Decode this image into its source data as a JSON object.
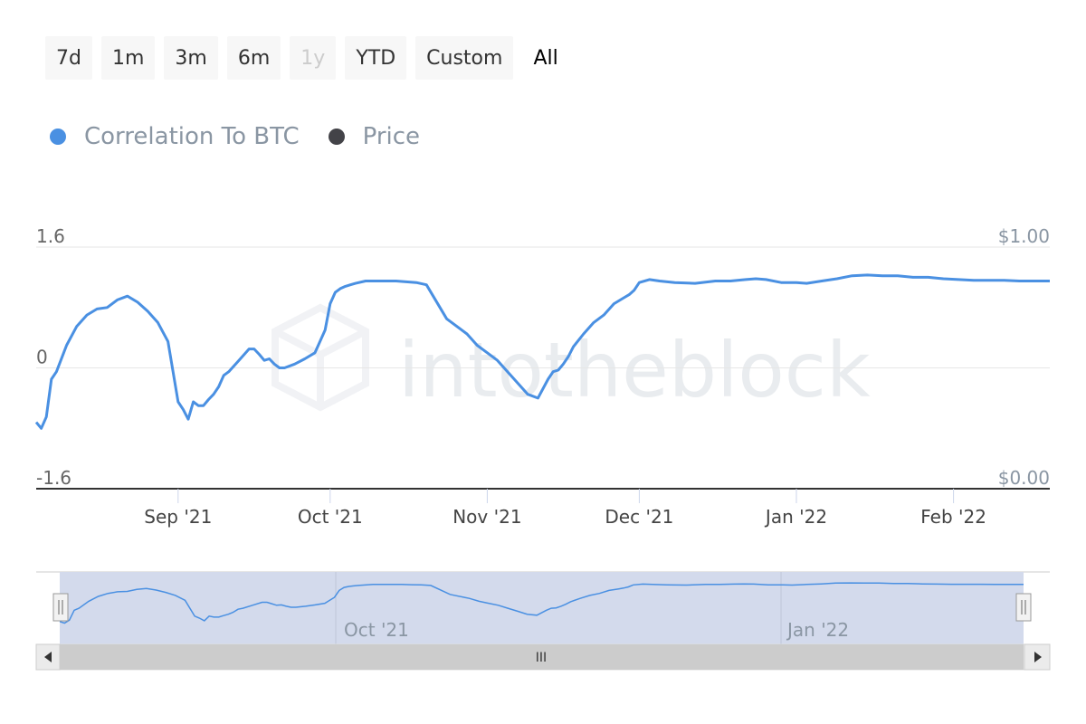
{
  "range_selector": {
    "buttons": [
      {
        "label": "7d",
        "state": "normal"
      },
      {
        "label": "1m",
        "state": "normal"
      },
      {
        "label": "3m",
        "state": "normal"
      },
      {
        "label": "6m",
        "state": "normal"
      },
      {
        "label": "1y",
        "state": "disabled"
      },
      {
        "label": "YTD",
        "state": "normal"
      },
      {
        "label": "Custom",
        "state": "normal"
      },
      {
        "label": "All",
        "state": "selected"
      }
    ]
  },
  "legend": {
    "items": [
      {
        "label": "Correlation To BTC",
        "color": "#4a90e2"
      },
      {
        "label": "Price",
        "color": "#434348"
      }
    ]
  },
  "watermark": "intotheblock",
  "navigator": {
    "labels": [
      "Oct '21",
      "Jan '22"
    ],
    "scrollbar_grip": "III"
  },
  "colors": {
    "line": "#4a90e2",
    "navigator_fill": "#d3daec",
    "grid": "#e6e6e6"
  },
  "chart_data": {
    "type": "line",
    "title": "",
    "xlabel": "",
    "ylabel": "",
    "ylim": [
      -1.6,
      1.6
    ],
    "y_ticks": [
      "1.6",
      "0",
      "-1.6"
    ],
    "y2_ticks": [
      "$1.00",
      "$0.00"
    ],
    "x_ticks": [
      "Sep '21",
      "Oct '21",
      "Nov '21",
      "Dec '21",
      "Jan '22",
      "Feb '22"
    ],
    "xlim": [
      "2021-08-04",
      "2022-02-20"
    ],
    "grid": true,
    "legend_position": "top-left",
    "series": [
      {
        "name": "Correlation To BTC",
        "x": [
          "2021-08-04",
          "2021-08-05",
          "2021-08-06",
          "2021-08-07",
          "2021-08-08",
          "2021-08-10",
          "2021-08-12",
          "2021-08-14",
          "2021-08-16",
          "2021-08-18",
          "2021-08-20",
          "2021-08-22",
          "2021-08-24",
          "2021-08-26",
          "2021-08-28",
          "2021-08-30",
          "2021-09-01",
          "2021-09-02",
          "2021-09-03",
          "2021-09-04",
          "2021-09-05",
          "2021-09-06",
          "2021-09-07",
          "2021-09-08",
          "2021-09-09",
          "2021-09-10",
          "2021-09-11",
          "2021-09-13",
          "2021-09-15",
          "2021-09-16",
          "2021-09-17",
          "2021-09-18",
          "2021-09-19",
          "2021-09-20",
          "2021-09-21",
          "2021-09-22",
          "2021-09-24",
          "2021-09-26",
          "2021-09-28",
          "2021-09-30",
          "2021-10-01",
          "2021-10-02",
          "2021-10-03",
          "2021-10-04",
          "2021-10-05",
          "2021-10-06",
          "2021-10-08",
          "2021-10-10",
          "2021-10-12",
          "2021-10-14",
          "2021-10-16",
          "2021-10-18",
          "2021-10-20",
          "2021-10-24",
          "2021-10-27",
          "2021-10-28",
          "2021-10-30",
          "2021-11-01",
          "2021-11-03",
          "2021-11-05",
          "2021-11-07",
          "2021-11-09",
          "2021-11-11",
          "2021-11-13",
          "2021-11-14",
          "2021-11-15",
          "2021-11-16",
          "2021-11-17",
          "2021-11-18",
          "2021-11-20",
          "2021-11-22",
          "2021-11-24",
          "2021-11-26",
          "2021-11-28",
          "2021-11-29",
          "2021-11-30",
          "2021-12-01",
          "2021-12-03",
          "2021-12-05",
          "2021-12-08",
          "2021-12-12",
          "2021-12-16",
          "2021-12-19",
          "2021-12-22",
          "2021-12-24",
          "2021-12-26",
          "2021-12-29",
          "2022-01-01",
          "2022-01-03",
          "2022-01-06",
          "2022-01-09",
          "2022-01-12",
          "2022-01-15",
          "2022-01-18",
          "2022-01-21",
          "2022-01-24",
          "2022-01-27",
          "2022-01-30",
          "2022-02-02",
          "2022-02-05",
          "2022-02-08",
          "2022-02-11",
          "2022-02-14",
          "2022-02-17",
          "2022-02-20"
        ],
        "y": [
          -0.72,
          -0.8,
          -0.65,
          -0.15,
          -0.05,
          0.3,
          0.55,
          0.7,
          0.78,
          0.8,
          0.9,
          0.95,
          0.87,
          0.75,
          0.6,
          0.35,
          -0.45,
          -0.55,
          -0.68,
          -0.45,
          -0.5,
          -0.5,
          -0.42,
          -0.35,
          -0.25,
          -0.1,
          -0.05,
          0.1,
          0.25,
          0.25,
          0.18,
          0.1,
          0.12,
          0.05,
          0.0,
          0.0,
          0.05,
          0.12,
          0.2,
          0.5,
          0.85,
          1.0,
          1.05,
          1.08,
          1.1,
          1.12,
          1.15,
          1.15,
          1.15,
          1.15,
          1.14,
          1.13,
          1.1,
          0.65,
          0.5,
          0.45,
          0.3,
          0.2,
          0.1,
          -0.05,
          -0.2,
          -0.35,
          -0.4,
          -0.15,
          -0.05,
          -0.03,
          0.05,
          0.15,
          0.28,
          0.45,
          0.6,
          0.7,
          0.85,
          0.93,
          0.97,
          1.03,
          1.13,
          1.17,
          1.15,
          1.13,
          1.12,
          1.15,
          1.15,
          1.17,
          1.18,
          1.17,
          1.13,
          1.13,
          1.12,
          1.15,
          1.18,
          1.22,
          1.23,
          1.22,
          1.22,
          1.2,
          1.2,
          1.18,
          1.17,
          1.16,
          1.16,
          1.16,
          1.15,
          1.15,
          1.15
        ]
      }
    ]
  }
}
